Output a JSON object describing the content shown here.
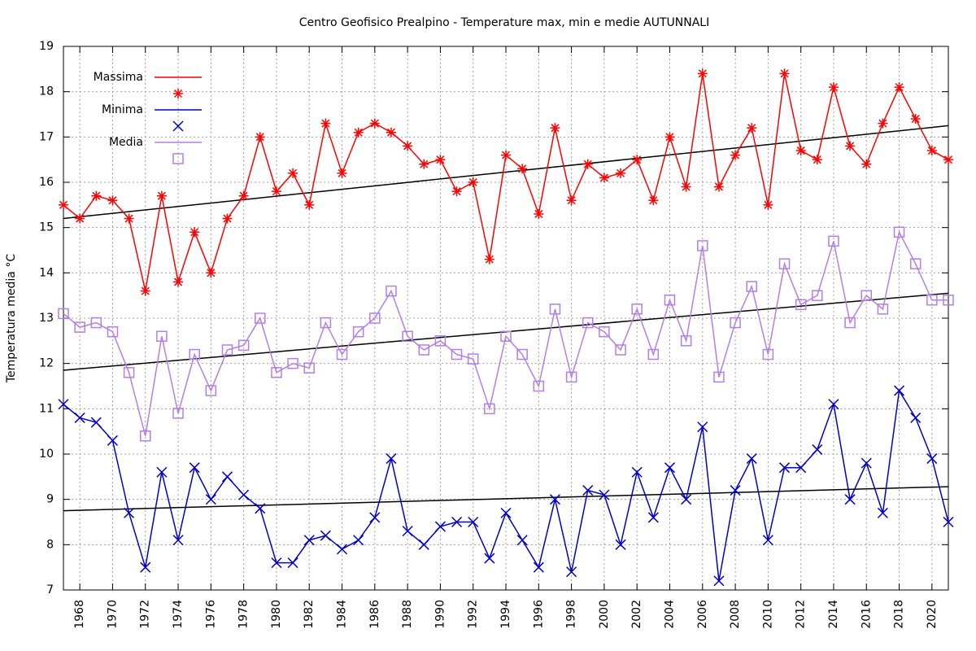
{
  "chart_data": {
    "type": "line",
    "title": "Centro Geofisico Prealpino - Temperature max, min e medie AUTUNNALI",
    "y_label": "Temperatura media °C",
    "x": [
      1967,
      1968,
      1969,
      1970,
      1971,
      1972,
      1973,
      1974,
      1975,
      1976,
      1977,
      1978,
      1979,
      1980,
      1981,
      1982,
      1983,
      1984,
      1985,
      1986,
      1987,
      1988,
      1989,
      1990,
      1991,
      1992,
      1993,
      1994,
      1995,
      1996,
      1997,
      1998,
      1999,
      2000,
      2001,
      2002,
      2003,
      2004,
      2005,
      2006,
      2007,
      2008,
      2009,
      2010,
      2011,
      2012,
      2013,
      2014,
      2015,
      2016,
      2017,
      2018,
      2019,
      2020,
      2021
    ],
    "xlim": [
      1967,
      2021
    ],
    "xticks": [
      1968,
      1970,
      1972,
      1974,
      1976,
      1978,
      1980,
      1982,
      1984,
      1986,
      1988,
      1990,
      1992,
      1994,
      1996,
      1998,
      2000,
      2002,
      2004,
      2006,
      2008,
      2010,
      2012,
      2014,
      2016,
      2018,
      2020
    ],
    "ylim": [
      7,
      19
    ],
    "yticks": [
      7,
      8,
      9,
      10,
      11,
      12,
      13,
      14,
      15,
      16,
      17,
      18,
      19
    ],
    "grid": true,
    "legend": "top-left",
    "series": [
      {
        "name": "Massima",
        "color": "#ff0000",
        "marker": "star",
        "values": [
          15.5,
          15.2,
          15.7,
          15.6,
          15.2,
          13.6,
          15.7,
          13.8,
          14.9,
          14.0,
          15.2,
          15.7,
          17.0,
          15.8,
          16.2,
          15.5,
          17.3,
          16.2,
          17.1,
          17.3,
          17.1,
          16.8,
          16.4,
          16.5,
          15.8,
          16.0,
          14.3,
          16.6,
          16.3,
          15.3,
          17.2,
          15.6,
          16.4,
          16.1,
          16.2,
          16.5,
          15.6,
          17.0,
          15.9,
          18.4,
          15.9,
          16.6,
          17.2,
          15.5,
          18.4,
          16.7,
          16.5,
          18.1,
          16.8,
          16.4,
          17.3,
          18.1,
          17.4,
          16.7,
          16.5
        ],
        "trend": [
          15.2,
          17.25
        ]
      },
      {
        "name": "Minima",
        "color": "#0000cc",
        "marker": "cross",
        "values": [
          11.1,
          10.8,
          10.7,
          10.3,
          8.7,
          7.5,
          9.6,
          8.1,
          9.7,
          9.0,
          9.5,
          9.1,
          8.8,
          7.6,
          7.6,
          8.1,
          8.2,
          7.9,
          8.1,
          8.6,
          9.9,
          8.3,
          8.0,
          8.4,
          8.5,
          8.5,
          7.7,
          8.7,
          8.1,
          7.5,
          9.0,
          7.4,
          9.2,
          9.1,
          8.0,
          9.6,
          8.6,
          9.7,
          9.0,
          10.6,
          7.2,
          9.2,
          9.9,
          8.1,
          9.7,
          9.7,
          10.1,
          11.1,
          9.0,
          9.8,
          8.7,
          11.4,
          10.8,
          9.9,
          8.5
        ],
        "trend": [
          8.75,
          9.28
        ]
      },
      {
        "name": "Media",
        "color": "#b57ee6",
        "marker": "square",
        "values": [
          13.1,
          12.8,
          12.9,
          12.7,
          11.8,
          10.4,
          12.6,
          10.9,
          12.2,
          11.4,
          12.3,
          12.4,
          13.0,
          11.8,
          12.0,
          11.9,
          12.9,
          12.2,
          12.7,
          13.0,
          13.6,
          12.6,
          12.3,
          12.5,
          12.2,
          12.1,
          11.0,
          12.6,
          12.2,
          11.5,
          13.2,
          11.7,
          12.9,
          12.7,
          12.3,
          13.2,
          12.2,
          13.4,
          12.5,
          14.6,
          11.7,
          12.9,
          13.7,
          12.2,
          14.2,
          13.3,
          13.5,
          14.7,
          12.9,
          13.5,
          13.2,
          14.9,
          14.2,
          13.4,
          13.4
        ],
        "trend": [
          11.85,
          13.55
        ]
      }
    ]
  }
}
